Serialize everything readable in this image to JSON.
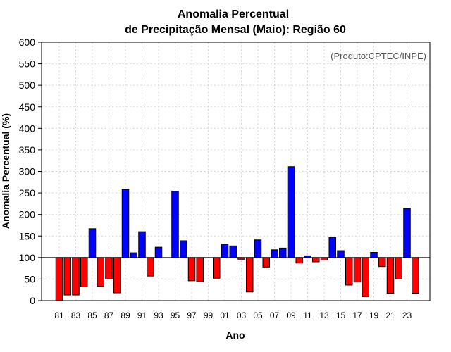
{
  "chart_data": {
    "type": "bar",
    "title_line1": "Anomalia Percentual",
    "title_line2": "de Precipitação Mensal (Maio): Região 60",
    "credit": "(Produto:CPTEC/INPE)",
    "xlabel": "Ano",
    "ylabel": "Anomalia Percentual (%)",
    "ylim": [
      0,
      600
    ],
    "yticks": [
      0,
      50,
      100,
      150,
      200,
      250,
      300,
      350,
      400,
      450,
      500,
      550,
      600
    ],
    "baseline": 100,
    "grid": true,
    "colors": {
      "above": "#0000ff",
      "below": "#ff0000",
      "border": "#000000",
      "grid": "#d9d9d9"
    },
    "categories": [
      "81",
      "82",
      "83",
      "84",
      "85",
      "86",
      "87",
      "88",
      "89",
      "90",
      "91",
      "92",
      "93",
      "94",
      "95",
      "96",
      "97",
      "98",
      "99",
      "00",
      "01",
      "02",
      "03",
      "04",
      "05",
      "06",
      "07",
      "08",
      "09",
      "10",
      "11",
      "12",
      "13",
      "14",
      "15",
      "16",
      "17",
      "18",
      "19",
      "20",
      "21",
      "22",
      "23",
      "24"
    ],
    "xtick_labels": [
      "81",
      "83",
      "85",
      "87",
      "89",
      "91",
      "93",
      "95",
      "97",
      "99",
      "01",
      "03",
      "05",
      "07",
      "09",
      "11",
      "13",
      "15",
      "17",
      "19",
      "21",
      "23"
    ],
    "values": [
      0,
      13,
      13,
      32,
      167,
      33,
      50,
      18,
      258,
      111,
      160,
      57,
      124,
      100,
      254,
      139,
      46,
      44,
      100,
      52,
      131,
      127,
      96,
      20,
      141,
      78,
      118,
      122,
      311,
      87,
      104,
      90,
      94,
      147,
      116,
      36,
      43,
      9,
      112,
      79,
      17,
      50,
      214,
      17
    ]
  }
}
